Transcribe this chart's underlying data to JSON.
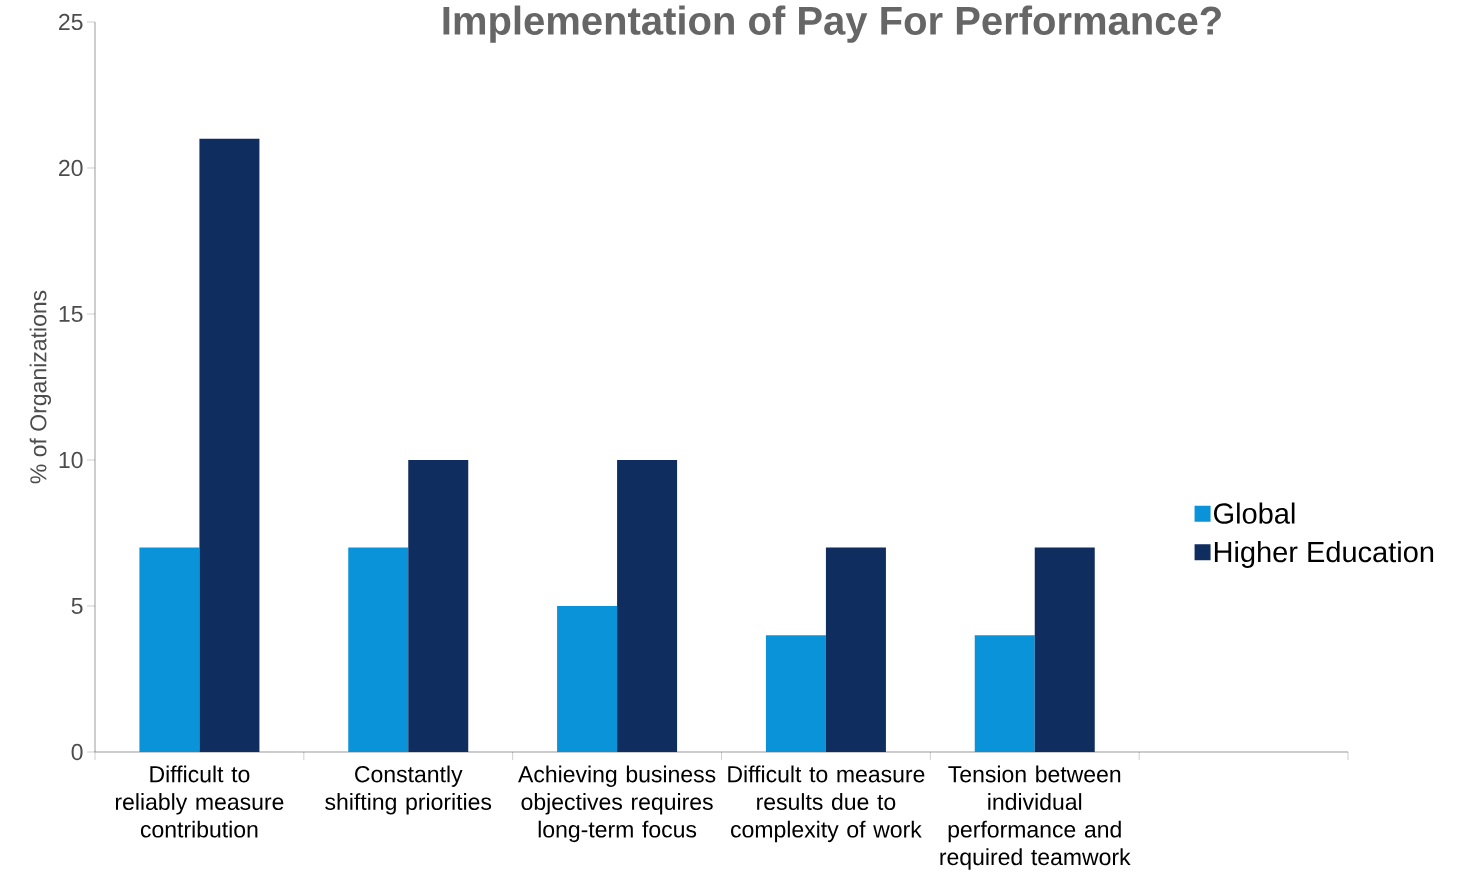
{
  "chart_data": {
    "type": "bar",
    "title": "Implementation of Pay For Performance?",
    "ylabel": "% of Organizations",
    "categories": [
      "Difficult to reliably measure contribution",
      "Constantly shifting priorities",
      "Achieving business objectives requires long-term focus",
      "Difficult to measure results due to complexity of work",
      "Tension between individual performance and required teamwork",
      null
    ],
    "series": [
      {
        "name": "Global",
        "color": "#0a93d8",
        "values": [
          7,
          7,
          5,
          4,
          4,
          null
        ]
      },
      {
        "name": "Higher Education",
        "color": "#0f2d5e",
        "values": [
          21,
          10,
          10,
          7,
          7,
          null
        ]
      }
    ],
    "ylim": [
      0,
      25
    ],
    "yticks": [
      0,
      5,
      10,
      15,
      20,
      25
    ],
    "grid": false,
    "legend": "right"
  }
}
